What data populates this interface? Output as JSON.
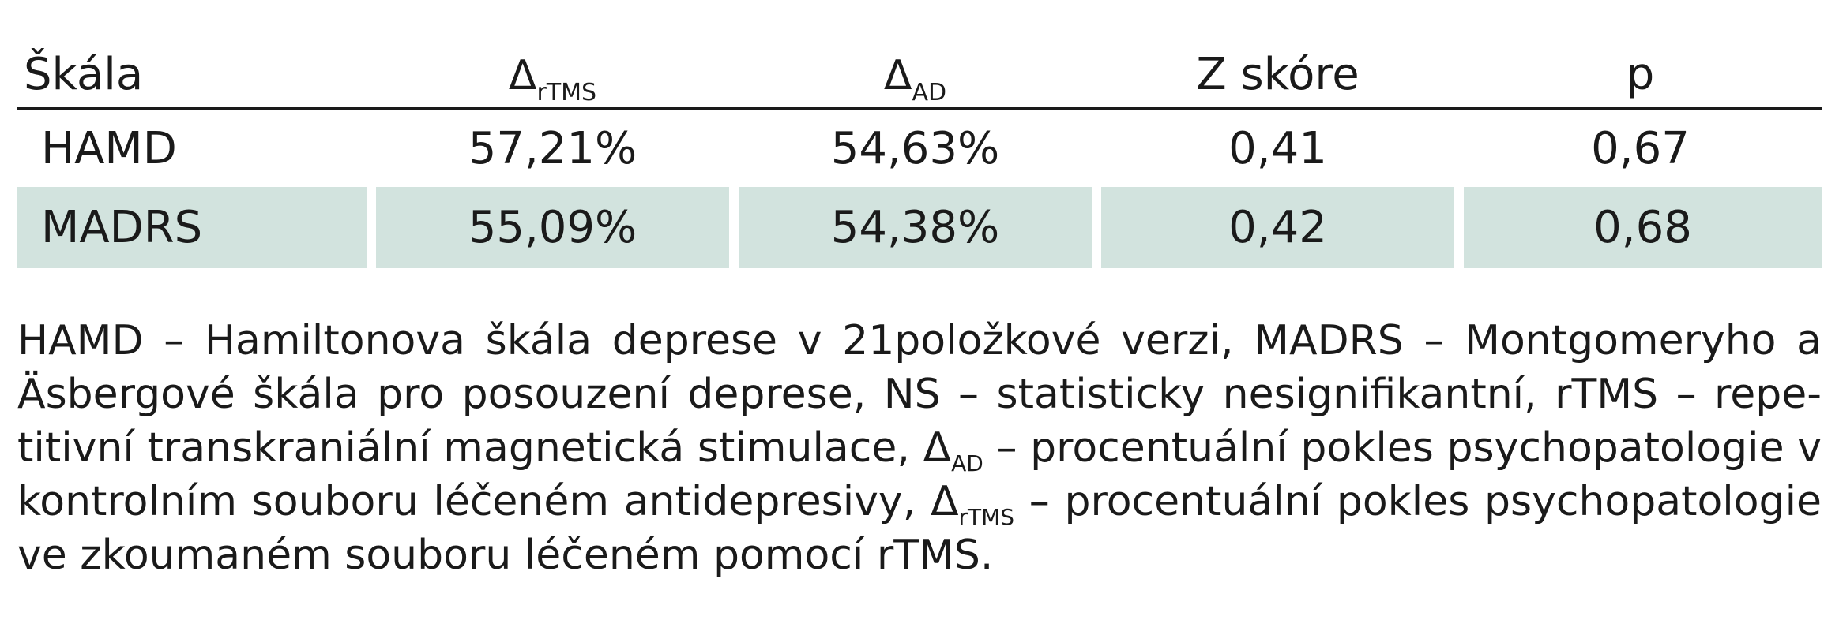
{
  "table": {
    "headers": {
      "scale": "Škála",
      "delta_rtms_symbol": "Δ",
      "delta_rtms_sub": "rTMS",
      "delta_ad_symbol": "Δ",
      "delta_ad_sub": "AD",
      "z_score": "Z skóre",
      "p": "p"
    },
    "rows": [
      {
        "scale": "HAMD",
        "delta_rtms": "57,21%",
        "delta_ad": "54,63%",
        "z": "0,41",
        "p": "0,67"
      },
      {
        "scale": "MADRS",
        "delta_rtms": "55,09%",
        "delta_ad": "54,38%",
        "z": "0,42",
        "p": "0,68"
      }
    ]
  },
  "footnote": {
    "part1": "HAMD – Hamiltonova škála deprese v 21položkové verzi, MADRS – Montgomeryho a Äsbergové škála pro posouzení deprese, NS – statisticky nesignifikantní, rTMS – repe-titivní transkraniální magnetická stimulace, ",
    "delta_ad_symbol": "Δ",
    "delta_ad_sub": "AD",
    "part2": " – procentuální pokles psychopatologie v kontrolním souboru léčeném antidepresivy, ",
    "delta_rtms_symbol": "Δ",
    "delta_rtms_sub": "rTMS",
    "part3": " – procentuální pokles psychopatologie ve zkoumaném souboru léčeném pomocí rTMS."
  },
  "colors": {
    "highlight_row": "#d2e3de",
    "text": "#1a1a1a"
  }
}
